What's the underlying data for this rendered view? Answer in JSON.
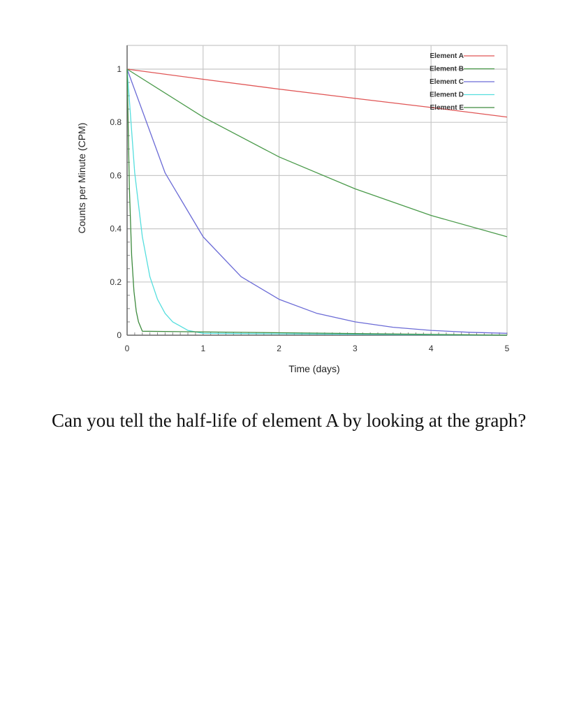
{
  "chart_data": {
    "type": "line",
    "title": "",
    "xlabel": "Time (days)",
    "ylabel": "Counts per Minute (CPM)",
    "xlim": [
      0,
      5
    ],
    "ylim": [
      0,
      1.05
    ],
    "x_ticks": [
      0,
      1,
      2,
      3,
      4,
      5
    ],
    "y_ticks": [
      {
        "value": 0,
        "label": "0"
      },
      {
        "value": 0.2,
        "label": "0.2"
      },
      {
        "value": 0.4,
        "label": "0.4"
      },
      {
        "value": 0.6,
        "label": "0.6"
      },
      {
        "value": 0.8,
        "label": "0.8"
      },
      {
        "value": 1,
        "label": "1"
      }
    ],
    "grid": true,
    "legend_position": "top-right",
    "series": [
      {
        "name": "Element A",
        "color": "#e05555",
        "x": [
          0,
          1,
          2,
          3,
          4,
          5
        ],
        "y": [
          1.0,
          0.962,
          0.925,
          0.89,
          0.856,
          0.82
        ]
      },
      {
        "name": "Element B",
        "color": "#4a9a4a",
        "x": [
          0,
          1,
          2,
          3,
          4,
          5
        ],
        "y": [
          1.0,
          0.82,
          0.67,
          0.55,
          0.45,
          0.37
        ]
      },
      {
        "name": "Element C",
        "color": "#6b6bd6",
        "x": [
          0,
          0.5,
          1,
          1.5,
          2,
          2.5,
          3,
          3.5,
          4,
          4.5,
          5
        ],
        "y": [
          1.0,
          0.61,
          0.37,
          0.22,
          0.135,
          0.082,
          0.05,
          0.03,
          0.018,
          0.011,
          0.007
        ]
      },
      {
        "name": "Element D",
        "color": "#55dede",
        "x": [
          0,
          0.1,
          0.2,
          0.3,
          0.4,
          0.5,
          0.6,
          0.8,
          1,
          5
        ],
        "y": [
          1.0,
          0.61,
          0.37,
          0.22,
          0.135,
          0.082,
          0.05,
          0.018,
          0.007,
          0.0
        ]
      },
      {
        "name": "Element E",
        "color": "#3d8a3d",
        "x": [
          0,
          0.03,
          0.06,
          0.09,
          0.12,
          0.15,
          0.2,
          5
        ],
        "y": [
          1.0,
          0.55,
          0.3,
          0.165,
          0.09,
          0.05,
          0.015,
          0.0
        ]
      }
    ]
  },
  "question": {
    "text": "Can you tell the half-life of element A by looking at the graph?"
  }
}
